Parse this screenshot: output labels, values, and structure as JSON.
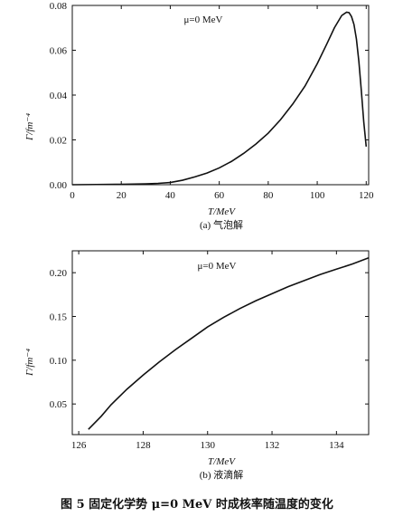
{
  "figure_caption": "图 5  固定化学势 μ=0 MeV 时成核率随温度的变化",
  "chart_data": [
    {
      "type": "line",
      "caption": "(a) 气泡解",
      "annotation": "μ=0 MeV",
      "xlabel": "T/MeV",
      "ylabel": "Γ/fm⁻⁴",
      "xlim": [
        0,
        121
      ],
      "ylim": [
        0,
        0.08
      ],
      "xticks": [
        0,
        20,
        40,
        60,
        80,
        100,
        120
      ],
      "yticks": [
        0.0,
        0.02,
        0.04,
        0.06,
        0.08
      ],
      "ytick_labels": [
        "0.00",
        "0.02",
        "0.04",
        "0.06",
        "0.08"
      ],
      "x": [
        0,
        10,
        20,
        30,
        35,
        40,
        45,
        50,
        55,
        60,
        65,
        70,
        75,
        80,
        85,
        90,
        95,
        100,
        104,
        107,
        110,
        112,
        113,
        114,
        115,
        116,
        117,
        118,
        119,
        120
      ],
      "y": [
        0.0,
        0.0001,
        0.0002,
        0.0004,
        0.0006,
        0.001,
        0.002,
        0.0035,
        0.0052,
        0.0075,
        0.0104,
        0.014,
        0.0182,
        0.023,
        0.029,
        0.036,
        0.044,
        0.054,
        0.063,
        0.07,
        0.0755,
        0.077,
        0.0768,
        0.075,
        0.0715,
        0.065,
        0.055,
        0.042,
        0.028,
        0.017
      ]
    },
    {
      "type": "line",
      "caption": "(b) 液滴解",
      "annotation": "μ=0 MeV",
      "xlabel": "T/MeV",
      "ylabel": "Γ/fm⁻⁴",
      "xlim": [
        125.8,
        135
      ],
      "ylim": [
        0.015,
        0.225
      ],
      "xticks": [
        126,
        128,
        130,
        132,
        134
      ],
      "yticks": [
        0.05,
        0.1,
        0.15,
        0.2
      ],
      "ytick_labels": [
        "0.05",
        "0.10",
        "0.15",
        "0.20"
      ],
      "x": [
        126.3,
        126.7,
        127.0,
        127.5,
        128.0,
        128.5,
        129.0,
        129.5,
        130.0,
        130.5,
        131.0,
        131.5,
        132.0,
        132.5,
        133.0,
        133.5,
        134.0,
        134.5,
        135.0
      ],
      "y": [
        0.021,
        0.036,
        0.049,
        0.067,
        0.083,
        0.098,
        0.112,
        0.125,
        0.138,
        0.149,
        0.159,
        0.168,
        0.176,
        0.184,
        0.191,
        0.198,
        0.204,
        0.21,
        0.217
      ]
    }
  ]
}
